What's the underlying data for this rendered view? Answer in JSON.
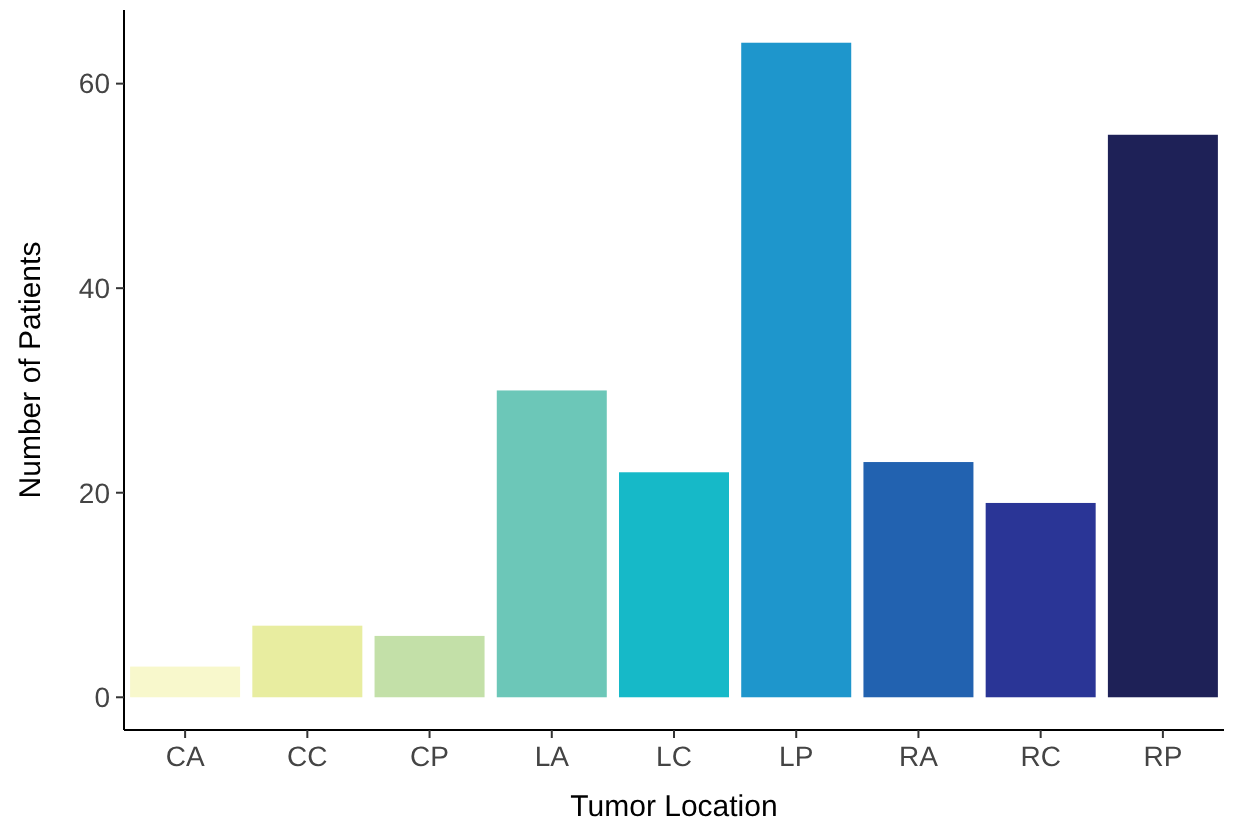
{
  "chart_data": {
    "type": "bar",
    "xlabel": "Tumor Location",
    "ylabel": "Number of Patients",
    "categories": [
      "CA",
      "CC",
      "CP",
      "LA",
      "LC",
      "LP",
      "RA",
      "RC",
      "RP"
    ],
    "values": [
      3,
      7,
      6,
      30,
      22,
      64,
      23,
      19,
      55
    ],
    "colors": [
      "#f8f8cc",
      "#e8eda0",
      "#c3e0a8",
      "#6cc7b8",
      "#16b9c8",
      "#1e96cc",
      "#2262b0",
      "#2a3596",
      "#1e2157"
    ],
    "ylim": [
      -3.2,
      67.2
    ],
    "yticks": [
      0,
      20,
      40,
      60
    ],
    "grid": false
  }
}
